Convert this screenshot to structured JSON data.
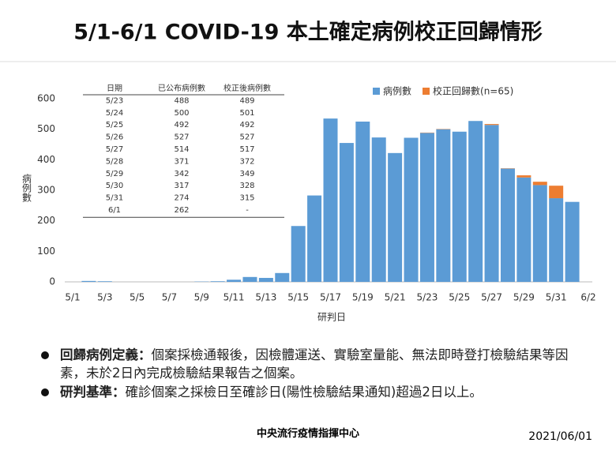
{
  "chart_data": {
    "type": "stacked_bar",
    "title": "5/1-6/1 COVID-19 本土確定病例校正回歸情形",
    "y_label": "病例數",
    "x_label": "研判日",
    "categories": [
      "5/1",
      null,
      "5/3",
      null,
      "5/5",
      null,
      "5/7",
      null,
      "5/9",
      null,
      "5/11",
      null,
      "5/13",
      null,
      "5/15",
      null,
      "5/17",
      null,
      "5/19",
      null,
      "5/21",
      null,
      "5/23",
      null,
      "5/25",
      null,
      "5/27",
      null,
      "5/29",
      null,
      "5/31",
      null,
      "6/2"
    ],
    "series": [
      {
        "name": "病例數",
        "color": "#5b9bd5",
        "values": [
          0,
          3,
          2,
          0,
          0,
          0,
          0,
          0,
          1,
          2,
          7,
          16,
          13,
          29,
          183,
          283,
          535,
          455,
          525,
          473,
          422,
          472,
          488,
          500,
          492,
          527,
          514,
          371,
          342,
          317,
          274,
          262,
          null
        ]
      },
      {
        "name": "校正回歸數(n=65)",
        "color": "#ed7d31",
        "values": [
          null,
          null,
          null,
          null,
          null,
          null,
          null,
          null,
          null,
          null,
          null,
          null,
          null,
          null,
          null,
          null,
          null,
          null,
          null,
          null,
          null,
          null,
          1,
          1,
          0,
          0,
          3,
          1,
          7,
          11,
          41,
          null,
          null
        ]
      }
    ],
    "ylim": [
      0,
      600
    ],
    "yticks": [
      0,
      100,
      200,
      300,
      400,
      500,
      600
    ],
    "legend": "top-right"
  },
  "table": {
    "header": [
      "日期",
      "已公布病例數",
      "校正後病例數"
    ],
    "rows": [
      [
        "5/23",
        488,
        489
      ],
      [
        "5/24",
        500,
        501
      ],
      [
        "5/25",
        492,
        492
      ],
      [
        "5/26",
        527,
        527
      ],
      [
        "5/27",
        514,
        517
      ],
      [
        "5/28",
        371,
        372
      ],
      [
        "5/29",
        342,
        349
      ],
      [
        "5/30",
        317,
        328
      ],
      [
        "5/31",
        274,
        315
      ],
      [
        "6/1",
        262,
        "-"
      ]
    ]
  },
  "notes": [
    {
      "term": "回歸病例定義：",
      "text": "個案採檢通報後，因檢體運送、實驗室量能、無法即時登打檢驗結果等因素，未於2日內完成檢驗結果報告之個案。"
    },
    {
      "term": "研判基準：",
      "text": "確診個案之採檢日至確診日(陽性檢驗結果通知)超過2日以上。"
    }
  ],
  "footer": {
    "source": "中央流行疫情指揮中心",
    "date": "2021/06/01"
  }
}
